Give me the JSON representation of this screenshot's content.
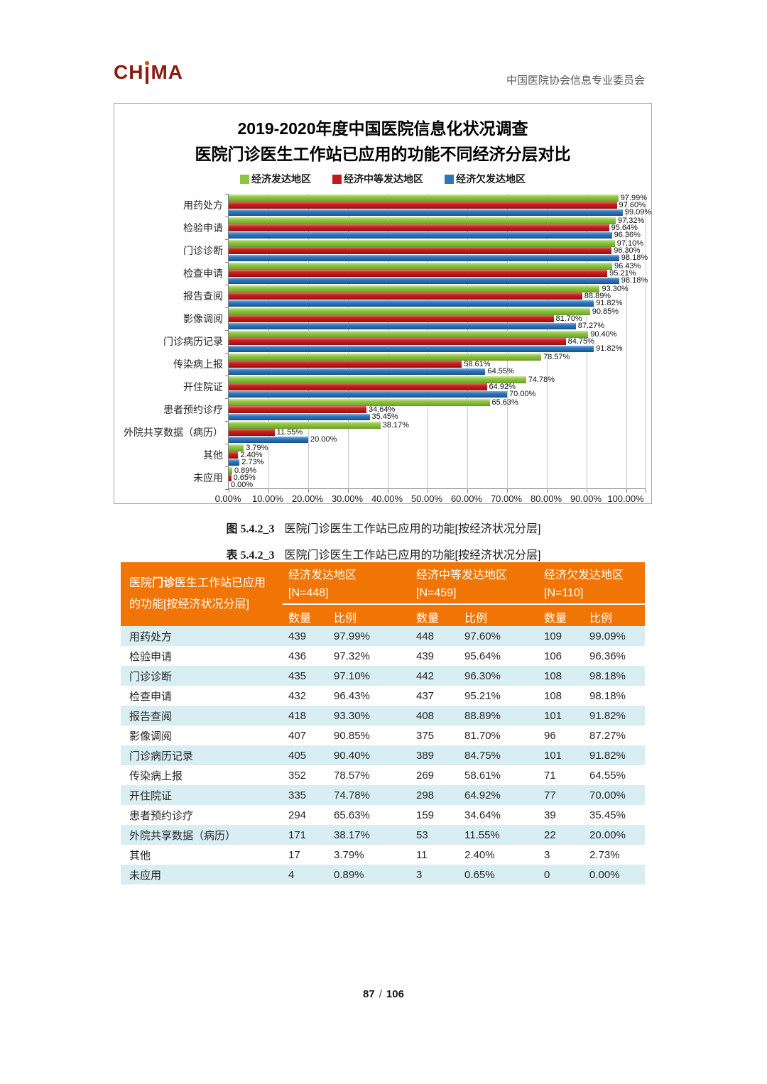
{
  "header": {
    "logo_pre": "CH",
    "logo_post": "MA",
    "org": "中国医院协会信息专业委员会"
  },
  "chart": {
    "title_line1": "2019-2020年度中国医院信息化状况调查",
    "title_line2": "医院门诊医生工作站已应用的功能不同经济分层对比"
  },
  "chart_data": {
    "type": "bar",
    "orientation": "horizontal",
    "title": "2019-2020年度中国医院信息化状况调查 医院门诊医生工作站已应用的功能不同经济分层对比",
    "xlabel": "",
    "ylabel": "",
    "xlim": [
      0,
      100
    ],
    "grid": true,
    "legend_position": "top",
    "x_ticks": [
      "0.00%",
      "10.00%",
      "20.00%",
      "30.00%",
      "40.00%",
      "50.00%",
      "60.00%",
      "70.00%",
      "80.00%",
      "90.00%",
      "100.00%"
    ],
    "categories": [
      "用药处方",
      "检验申请",
      "门诊诊断",
      "检查申请",
      "报告查阅",
      "影像调阅",
      "门诊病历记录",
      "传染病上报",
      "开住院证",
      "患者预约诊疗",
      "外院共享数据（病历）",
      "其他",
      "未应用"
    ],
    "series": [
      {
        "name": "经济发达地区",
        "color": "#8CC63E",
        "values": [
          97.99,
          97.32,
          97.1,
          96.43,
          93.3,
          90.85,
          90.4,
          78.57,
          74.78,
          65.63,
          38.17,
          3.79,
          0.89
        ],
        "labels": [
          "97.99%",
          "97.32%",
          "97.10%",
          "96.43%",
          "93.30%",
          "90.85%",
          "90.40%",
          "78.57%",
          "74.78%",
          "65.63%",
          "38.17%",
          "3.79%",
          "0.89%"
        ]
      },
      {
        "name": "经济中等发达地区",
        "color": "#C41A1E",
        "values": [
          97.6,
          95.64,
          96.3,
          95.21,
          88.89,
          81.7,
          84.75,
          58.61,
          64.92,
          34.64,
          11.55,
          2.4,
          0.65
        ],
        "labels": [
          "97.60%",
          "95.64%",
          "96.30%",
          "95.21%",
          "88.89%",
          "81.70%",
          "84.75%",
          "58.61%",
          "64.92%",
          "34.64%",
          "11.55%",
          "2.40%",
          "0.65%"
        ]
      },
      {
        "name": "经济欠发达地区",
        "color": "#2E74B8",
        "values": [
          99.09,
          96.36,
          98.18,
          98.18,
          91.82,
          87.27,
          91.82,
          64.55,
          70.0,
          35.45,
          20.0,
          2.73,
          0.0
        ],
        "labels": [
          "99.09%",
          "96.36%",
          "98.18%",
          "98.18%",
          "91.82%",
          "87.27%",
          "91.82%",
          "64.55%",
          "70.00%",
          "35.45%",
          "20.00%",
          "2.73%",
          "0.00%"
        ]
      }
    ]
  },
  "figure_caption": {
    "label": "图 5.4.2_3",
    "text": "医院门诊医生工作站已应用的功能[按经济状况分层]"
  },
  "table_caption": {
    "label": "表 5.4.2_3",
    "text": "医院门诊医生工作站已应用的功能[按经济状况分层]"
  },
  "table": {
    "corner": {
      "pre": "医院",
      "bold": "门诊",
      "post": "医生工作站已应用的功能[按经济状况分层]"
    },
    "groups": [
      {
        "name": "经济发达地区",
        "n": "[N=448]"
      },
      {
        "name": "经济中等发达地区",
        "n": "[N=459]"
      },
      {
        "name": "经济欠发达地区",
        "n": "[N=110]"
      }
    ],
    "sub_count": "数量",
    "sub_ratio": "比例",
    "rows": [
      {
        "label": "用药处方",
        "cells": [
          "439",
          "97.99%",
          "448",
          "97.60%",
          "109",
          "99.09%"
        ]
      },
      {
        "label": "检验申请",
        "cells": [
          "436",
          "97.32%",
          "439",
          "95.64%",
          "106",
          "96.36%"
        ]
      },
      {
        "label": "门诊诊断",
        "cells": [
          "435",
          "97.10%",
          "442",
          "96.30%",
          "108",
          "98.18%"
        ]
      },
      {
        "label": "检查申请",
        "cells": [
          "432",
          "96.43%",
          "437",
          "95.21%",
          "108",
          "98.18%"
        ]
      },
      {
        "label": "报告查阅",
        "cells": [
          "418",
          "93.30%",
          "408",
          "88.89%",
          "101",
          "91.82%"
        ]
      },
      {
        "label": "影像调阅",
        "cells": [
          "407",
          "90.85%",
          "375",
          "81.70%",
          "96",
          "87.27%"
        ]
      },
      {
        "label": "门诊病历记录",
        "cells": [
          "405",
          "90.40%",
          "389",
          "84.75%",
          "101",
          "91.82%"
        ]
      },
      {
        "label": "传染病上报",
        "cells": [
          "352",
          "78.57%",
          "269",
          "58.61%",
          "71",
          "64.55%"
        ]
      },
      {
        "label": "开住院证",
        "cells": [
          "335",
          "74.78%",
          "298",
          "64.92%",
          "77",
          "70.00%"
        ]
      },
      {
        "label": "患者预约诊疗",
        "cells": [
          "294",
          "65.63%",
          "159",
          "34.64%",
          "39",
          "35.45%"
        ]
      },
      {
        "label": "外院共享数据（病历）",
        "cells": [
          "171",
          "38.17%",
          "53",
          "11.55%",
          "22",
          "20.00%"
        ]
      },
      {
        "label": "其他",
        "cells": [
          "17",
          "3.79%",
          "11",
          "2.40%",
          "3",
          "2.73%"
        ]
      },
      {
        "label": "未应用",
        "cells": [
          "4",
          "0.89%",
          "3",
          "0.65%",
          "0",
          "0.00%"
        ]
      }
    ]
  },
  "footer": {
    "page": "87",
    "sep": "/",
    "total": "106"
  }
}
